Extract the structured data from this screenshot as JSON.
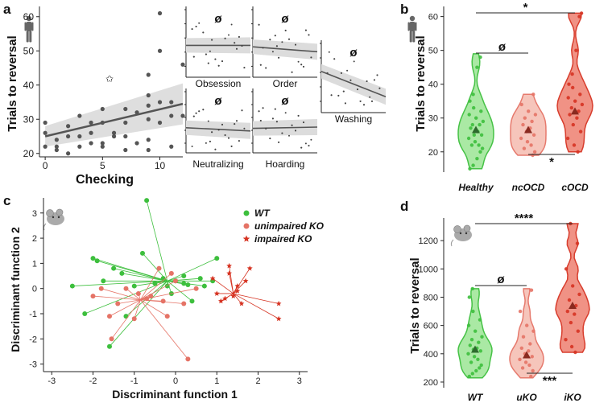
{
  "colors": {
    "green": "#3dbf3d",
    "green_fill": "#a6e8a0",
    "salmon": "#e57366",
    "salmon_fill": "#f6c2b8",
    "red": "#d63322",
    "red_fill": "#f08d7f",
    "dark": "#222222",
    "gray": "#666666"
  },
  "panels": {
    "a": "a",
    "b": "b",
    "c": "c",
    "d": "d"
  },
  "chart_data": [
    {
      "id": "a-main",
      "type": "scatter",
      "xlabel": "Checking",
      "ylabel": "Trials to reversal",
      "xlim": [
        -0.5,
        12
      ],
      "ylim": [
        19,
        63
      ],
      "xticks": [
        0,
        5,
        10
      ],
      "yticks": [
        20,
        30,
        40,
        50,
        60
      ],
      "annotation": "✩",
      "points": [
        [
          0,
          22
        ],
        [
          0,
          26
        ],
        [
          0,
          29
        ],
        [
          1,
          21
        ],
        [
          1,
          22
        ],
        [
          1,
          24
        ],
        [
          2,
          25
        ],
        [
          2,
          28
        ],
        [
          2,
          20
        ],
        [
          3,
          22
        ],
        [
          3,
          25
        ],
        [
          3,
          31
        ],
        [
          4,
          23
        ],
        [
          4,
          29
        ],
        [
          4,
          26
        ],
        [
          5,
          23
        ],
        [
          5,
          22
        ],
        [
          5,
          33
        ],
        [
          5,
          29
        ],
        [
          6,
          25
        ],
        [
          6,
          26
        ],
        [
          7,
          21
        ],
        [
          7,
          33
        ],
        [
          7,
          29
        ],
        [
          7,
          25
        ],
        [
          8,
          32
        ],
        [
          8,
          23
        ],
        [
          9,
          34
        ],
        [
          9,
          30
        ],
        [
          9,
          24
        ],
        [
          9,
          37
        ],
        [
          9,
          43
        ],
        [
          9,
          21
        ],
        [
          10,
          61
        ],
        [
          10,
          50
        ],
        [
          10,
          29
        ],
        [
          10,
          35
        ],
        [
          11,
          31
        ],
        [
          11,
          35
        ],
        [
          11,
          22
        ],
        [
          12,
          46
        ],
        [
          12,
          31
        ]
      ],
      "fit": {
        "x": [
          0,
          12
        ],
        "y": [
          25,
          34.5
        ]
      }
    },
    {
      "id": "a-sub",
      "type": "scatter",
      "subplots": [
        {
          "label": "Obsession",
          "sig": "ø",
          "fit": [
            0.45,
            0.45
          ]
        },
        {
          "label": "Order",
          "sig": "ø",
          "fit": [
            0.43,
            0.36
          ]
        },
        {
          "label": "Neutralizing",
          "sig": "ø",
          "fit": [
            0.39,
            0.34
          ]
        },
        {
          "label": "Hoarding",
          "sig": "ø",
          "fit": [
            0.38,
            0.4
          ]
        },
        {
          "label": "Washing",
          "sig": "ø",
          "fit": [
            0.57,
            0.22
          ]
        }
      ]
    },
    {
      "id": "b",
      "type": "violin",
      "ylabel": "Trials to reversal",
      "ylim": [
        14,
        63
      ],
      "yticks": [
        20,
        30,
        40,
        50,
        60
      ],
      "categories": [
        "Healthy",
        "ncOCD",
        "cOCD"
      ],
      "means": [
        26.5,
        26.5,
        32
      ],
      "ranges": [
        [
          15,
          49
        ],
        [
          19,
          37
        ],
        [
          20,
          61
        ]
      ],
      "points": [
        [
          15,
          16,
          18,
          20,
          21,
          22,
          22,
          23,
          24,
          25,
          25,
          26,
          27,
          28,
          28,
          29,
          30,
          31,
          32,
          33,
          35,
          37,
          45,
          48
        ],
        [
          19,
          20,
          21,
          22,
          23,
          24,
          25,
          26,
          27,
          28,
          29,
          30,
          31,
          32,
          34,
          37
        ],
        [
          20,
          22,
          24,
          26,
          28,
          30,
          31,
          32,
          33,
          34,
          35,
          36,
          37,
          39,
          40,
          43,
          50,
          60,
          61
        ]
      ],
      "comparisons": [
        {
          "pair": [
            "Healthy",
            "ncOCD"
          ],
          "label": "ø"
        },
        {
          "pair": [
            "Healthy",
            "cOCD"
          ],
          "label": "*"
        },
        {
          "pair": [
            "ncOCD",
            "cOCD"
          ],
          "label": "*"
        }
      ]
    },
    {
      "id": "c",
      "type": "scatter",
      "xlabel": "Discriminant function 1",
      "ylabel": "Discriminant function 2",
      "xlim": [
        -3.2,
        3.2
      ],
      "ylim": [
        -3.3,
        3.6
      ],
      "xticks": [
        -3,
        -2,
        -1,
        0,
        1,
        2,
        3
      ],
      "yticks": [
        -3,
        -2,
        -1,
        0,
        1,
        2,
        3
      ],
      "legend": [
        "WT",
        "unimpaired KO",
        "impaired KO"
      ],
      "centroids": [
        [
          -0.2,
          0.3
        ],
        [
          -0.85,
          -0.45
        ],
        [
          1.4,
          -0.2
        ]
      ],
      "groups": [
        {
          "name": "WT",
          "points": [
            [
              -2.5,
              0.1
            ],
            [
              -2.2,
              -1.0
            ],
            [
              -2.0,
              1.2
            ],
            [
              -1.9,
              1.1
            ],
            [
              -1.75,
              0.3
            ],
            [
              -1.6,
              -2.3
            ],
            [
              -1.5,
              0.8
            ],
            [
              -1.3,
              0.6
            ],
            [
              -1.2,
              -1.1
            ],
            [
              -1.0,
              0.1
            ],
            [
              -0.8,
              1.4
            ],
            [
              -0.7,
              3.5
            ],
            [
              -0.5,
              0.2
            ],
            [
              -0.3,
              0.4
            ],
            [
              -0.2,
              0.1
            ],
            [
              0.0,
              0.3
            ],
            [
              0.2,
              0.2
            ],
            [
              0.3,
              0.15
            ],
            [
              0.4,
              -0.5
            ],
            [
              0.6,
              0.4
            ],
            [
              0.7,
              0.1
            ],
            [
              0.9,
              0.3
            ],
            [
              1.0,
              1.2
            ],
            [
              0.2,
              0.5
            ],
            [
              -0.1,
              -0.2
            ]
          ]
        },
        {
          "name": "unimpaired KO",
          "points": [
            [
              -2.0,
              -0.3
            ],
            [
              -1.8,
              0.0
            ],
            [
              -1.6,
              -1.1
            ],
            [
              -1.55,
              -2.0
            ],
            [
              -1.4,
              -0.6
            ],
            [
              -1.2,
              0.0
            ],
            [
              -1.0,
              -1.2
            ],
            [
              -0.9,
              -0.2
            ],
            [
              -0.7,
              -0.4
            ],
            [
              -0.6,
              -0.3
            ],
            [
              -0.4,
              0.8
            ],
            [
              -0.2,
              -1.1
            ],
            [
              -0.1,
              0.6
            ],
            [
              0.0,
              0.3
            ],
            [
              0.2,
              -0.6
            ],
            [
              0.3,
              -2.8
            ],
            [
              0.5,
              0.0
            ],
            [
              -0.3,
              -0.5
            ]
          ]
        },
        {
          "name": "impaired KO",
          "points": [
            [
              0.9,
              0.4
            ],
            [
              1.0,
              -0.2
            ],
            [
              1.2,
              -0.4
            ],
            [
              1.3,
              0.6
            ],
            [
              1.4,
              -0.3
            ],
            [
              1.5,
              -0.1
            ],
            [
              1.6,
              -0.6
            ],
            [
              1.7,
              0.3
            ],
            [
              1.8,
              0.8
            ],
            [
              2.5,
              -0.6
            ],
            [
              2.5,
              -1.2
            ],
            [
              1.3,
              0.9
            ],
            [
              1.1,
              -0.5
            ],
            [
              1.5,
              0.1
            ]
          ]
        }
      ]
    },
    {
      "id": "d",
      "type": "violin",
      "ylabel": "Trials to reversal",
      "ylim": [
        160,
        1360
      ],
      "yticks": [
        200,
        400,
        600,
        800,
        1000,
        1200
      ],
      "categories": [
        "WT",
        "uKO",
        "iKO"
      ],
      "means": [
        430,
        390,
        740
      ],
      "ranges": [
        [
          230,
          860
        ],
        [
          230,
          860
        ],
        [
          410,
          1320
        ]
      ],
      "points": [
        [
          240,
          260,
          280,
          300,
          320,
          340,
          360,
          380,
          400,
          420,
          430,
          440,
          460,
          480,
          500,
          520,
          560,
          600,
          640,
          700,
          800,
          860
        ],
        [
          240,
          280,
          300,
          320,
          340,
          360,
          380,
          400,
          420,
          440,
          470,
          520,
          560,
          600,
          700,
          850
        ],
        [
          410,
          450,
          500,
          560,
          620,
          680,
          700,
          740,
          780,
          820,
          880,
          1000,
          1180,
          1320
        ]
      ],
      "comparisons": [
        {
          "pair": [
            "WT",
            "uKO"
          ],
          "label": "ø"
        },
        {
          "pair": [
            "WT",
            "iKO"
          ],
          "label": "****"
        },
        {
          "pair": [
            "uKO",
            "iKO"
          ],
          "label": "***"
        }
      ]
    }
  ]
}
